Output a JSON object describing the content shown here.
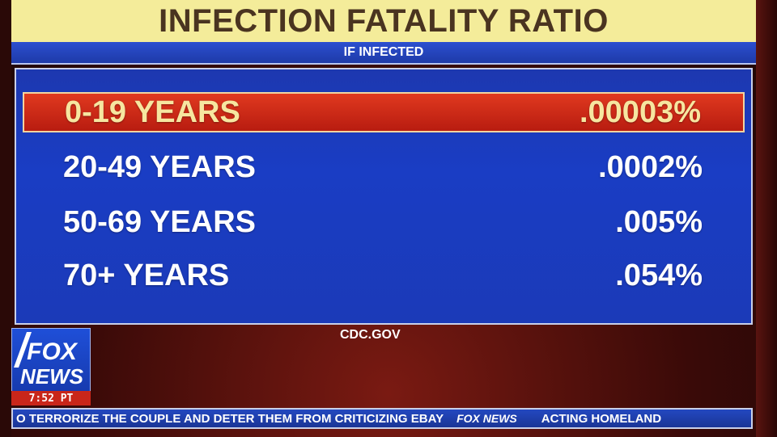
{
  "graphic": {
    "title": "INFECTION FATALITY RATIO",
    "subtitle": "IF INFECTED",
    "rows": [
      {
        "label": "0-19 YEARS",
        "value": ".00003%"
      },
      {
        "label": "20-49 YEARS",
        "value": ".0002%"
      },
      {
        "label": "50-69 YEARS",
        "value": ".005%"
      },
      {
        "label": "70+ YEARS",
        "value": ".054%"
      }
    ],
    "source": "CDC.GOV"
  },
  "logo": {
    "line1": "FOX",
    "line2": "NEWS",
    "time": "7:52 PT"
  },
  "ticker": {
    "story1": "O TERRORIZE THE COUPLE AND DETER THEM FROM CRITICIZING EBAY",
    "brand": "FOX NEWS",
    "story2": "ACTING HOMELAND"
  },
  "colors": {
    "title_bg": "#f4ec9a",
    "panel_blue": "#1a3dc4",
    "highlight_red": "#d02a18",
    "highlight_text": "#f6e6a0"
  }
}
